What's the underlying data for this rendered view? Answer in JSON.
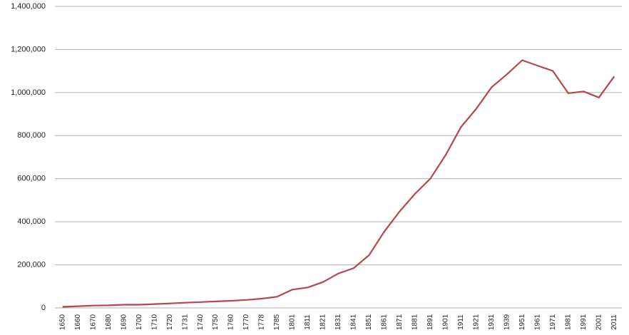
{
  "chart_data": {
    "type": "line",
    "categories": [
      "1650",
      "1660",
      "1670",
      "1680",
      "1690",
      "1700",
      "1710",
      "1720",
      "1731",
      "1740",
      "1750",
      "1760",
      "1770",
      "1778",
      "1785",
      "1801",
      "1811",
      "1821",
      "1831",
      "1841",
      "1851",
      "1861",
      "1871",
      "1881",
      "1891",
      "1901",
      "1911",
      "1921",
      "1931",
      "1939",
      "1951",
      "1961",
      "1971",
      "1981",
      "1991",
      "2001",
      "2011"
    ],
    "values": [
      5000,
      8000,
      11000,
      12000,
      15000,
      15000,
      18000,
      21000,
      24000,
      27000,
      30000,
      33000,
      37000,
      43000,
      52000,
      85000,
      95000,
      120000,
      160000,
      185000,
      245000,
      355000,
      448000,
      530000,
      600000,
      710000,
      840000,
      925000,
      1025000,
      1085000,
      1150000,
      1125000,
      1100000,
      997000,
      1005000,
      977000,
      1075000
    ],
    "color": "#b5484c",
    "ylim": [
      0,
      1400000
    ],
    "yticks": [
      0,
      {
        "value": 200000,
        "label": "200,000"
      },
      {
        "value": 400000,
        "label": "400,000"
      },
      {
        "value": 600000,
        "label": "600,000"
      },
      {
        "value": 800000,
        "label": "800,000"
      },
      {
        "value": 1000000,
        "label": "1,000,000"
      },
      {
        "value": 1200000,
        "label": "1,200,000"
      },
      {
        "value": 1400000,
        "label": "1,400,000"
      }
    ],
    "grid": true
  }
}
